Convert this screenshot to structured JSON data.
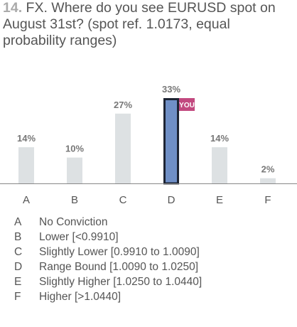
{
  "question": {
    "number": "14.",
    "text": "FX. Where do you see EURUSD spot on August 31st? (spot ref. 1.0173, equal probability ranges)"
  },
  "chart_data": {
    "type": "bar",
    "categories": [
      "A",
      "B",
      "C",
      "D",
      "E",
      "F"
    ],
    "values": [
      14,
      10,
      27,
      33,
      14,
      2
    ],
    "value_labels": [
      "14%",
      "10%",
      "27%",
      "33%",
      "14%",
      "2%"
    ],
    "ylim": [
      0,
      33
    ],
    "selected_index": 3,
    "selected_badge": "YOU",
    "colors": {
      "bar": "#dde1e3",
      "selected_bar": "#6f8fc6",
      "selected_border": "#1d2433",
      "badge": "#c2497f",
      "axis": "#888888",
      "label": "#777777"
    }
  },
  "legend": [
    {
      "letter": "A",
      "text": "No Conviction"
    },
    {
      "letter": "B",
      "text": "Lower [<0.9910]"
    },
    {
      "letter": "C",
      "text": "Slightly Lower [0.9910 to 1.0090]"
    },
    {
      "letter": "D",
      "text": "Range Bound [1.0090 to 1.0250]"
    },
    {
      "letter": "E",
      "text": "Slightly Higher [1.0250 to 1.0440]"
    },
    {
      "letter": "F",
      "text": "Higher [>1.0440]"
    }
  ]
}
